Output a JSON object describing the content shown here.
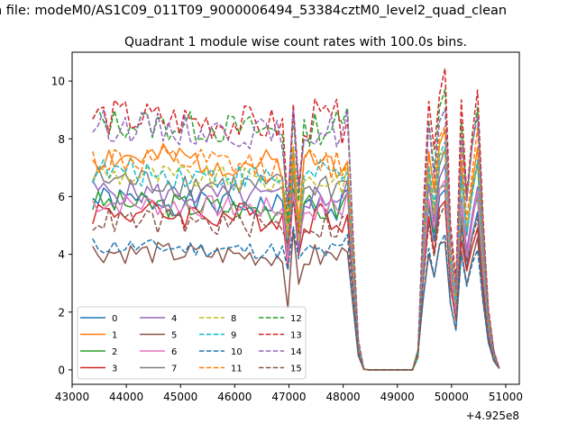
{
  "chart_data": {
    "type": "line",
    "suptitle": "n file: modeM0/AS1C09_011T09_9000006494_53384cztM0_level2_quad_clean",
    "title": "Quadrant 1 module wise count rates with 100.0s bins.",
    "xlabel": "",
    "ylabel": "",
    "x_offset_label": "+4.925e8",
    "xlim": [
      43000,
      51250
    ],
    "ylim": [
      -0.5,
      11
    ],
    "xticks": [
      43000,
      44000,
      45000,
      46000,
      47000,
      48000,
      49000,
      50000,
      51000
    ],
    "xtick_labels": [
      "43000",
      "44000",
      "45000",
      "46000",
      "47000",
      "48000",
      "49000",
      "50000",
      "51000"
    ],
    "yticks": [
      0,
      2,
      4,
      6,
      8,
      10
    ],
    "ytick_labels": [
      "0",
      "2",
      "4",
      "6",
      "8",
      "10"
    ],
    "legend_position": "lower-left",
    "legend_columns": 4,
    "series": [
      {
        "name": "0",
        "color": "#1f77b4",
        "dash": "solid",
        "level": 5.9,
        "amp": 0.45,
        "dip": 3.7,
        "p1": 6.3,
        "p2": 5.3,
        "seed": 1
      },
      {
        "name": "1",
        "color": "#ff7f0e",
        "dash": "solid",
        "level": 7.4,
        "amp": 0.55,
        "dip": 5.0,
        "p1": 8.2,
        "p2": 7.6,
        "seed": 2
      },
      {
        "name": "2",
        "color": "#2ca02c",
        "dash": "solid",
        "level": 5.8,
        "amp": 0.45,
        "dip": 4.3,
        "p1": 6.6,
        "p2": 6.0,
        "seed": 3
      },
      {
        "name": "3",
        "color": "#d62728",
        "dash": "solid",
        "level": 5.5,
        "amp": 0.5,
        "dip": 3.6,
        "p1": 5.9,
        "p2": 5.0,
        "seed": 4
      },
      {
        "name": "4",
        "color": "#9467bd",
        "dash": "solid",
        "level": 6.2,
        "amp": 0.45,
        "dip": 3.6,
        "p1": 7.0,
        "p2": 6.5,
        "seed": 5
      },
      {
        "name": "5",
        "color": "#8c564b",
        "dash": "solid",
        "level": 4.1,
        "amp": 0.4,
        "dip": 2.4,
        "p1": 4.6,
        "p2": 4.4,
        "seed": 6
      },
      {
        "name": "6",
        "color": "#e377c2",
        "dash": "solid",
        "level": 5.8,
        "amp": 0.4,
        "dip": 3.8,
        "p1": 6.6,
        "p2": 6.1,
        "seed": 7
      },
      {
        "name": "7",
        "color": "#7f7f7f",
        "dash": "solid",
        "level": 6.6,
        "amp": 0.5,
        "dip": 4.1,
        "p1": 7.5,
        "p2": 7.1,
        "seed": 8
      },
      {
        "name": "8",
        "color": "#bcbd22",
        "dash": "dashed",
        "level": 6.8,
        "amp": 0.45,
        "dip": 4.2,
        "p1": 7.8,
        "p2": 7.2,
        "seed": 9
      },
      {
        "name": "9",
        "color": "#17becf",
        "dash": "dashed",
        "level": 6.9,
        "amp": 0.5,
        "dip": 4.5,
        "p1": 7.9,
        "p2": 7.4,
        "seed": 10
      },
      {
        "name": "10",
        "color": "#1f77b4",
        "dash": "dashed",
        "level": 4.3,
        "amp": 0.3,
        "dip": 3.4,
        "p1": 4.6,
        "p2": 4.3,
        "seed": 11
      },
      {
        "name": "11",
        "color": "#ff7f0e",
        "dash": "dashed",
        "level": 7.3,
        "amp": 0.55,
        "dip": 4.3,
        "p1": 8.6,
        "p2": 8.2,
        "seed": 12
      },
      {
        "name": "12",
        "color": "#2ca02c",
        "dash": "dashed",
        "level": 8.6,
        "amp": 0.55,
        "dip": 5.2,
        "p1": 9.7,
        "p2": 9.0,
        "seed": 13
      },
      {
        "name": "13",
        "color": "#d62728",
        "dash": "dashed",
        "level": 8.8,
        "amp": 0.65,
        "dip": 5.6,
        "p1": 10.2,
        "p2": 9.7,
        "seed": 14
      },
      {
        "name": "14",
        "color": "#9467bd",
        "dash": "dashed",
        "level": 8.5,
        "amp": 0.55,
        "dip": 5.4,
        "p1": 9.2,
        "p2": 8.9,
        "seed": 15
      },
      {
        "name": "15",
        "color": "#8c564b",
        "dash": "dashed",
        "level": 5.2,
        "amp": 0.45,
        "dip": 4.5,
        "p1": 5.7,
        "p2": 5.4,
        "seed": 16
      }
    ]
  }
}
